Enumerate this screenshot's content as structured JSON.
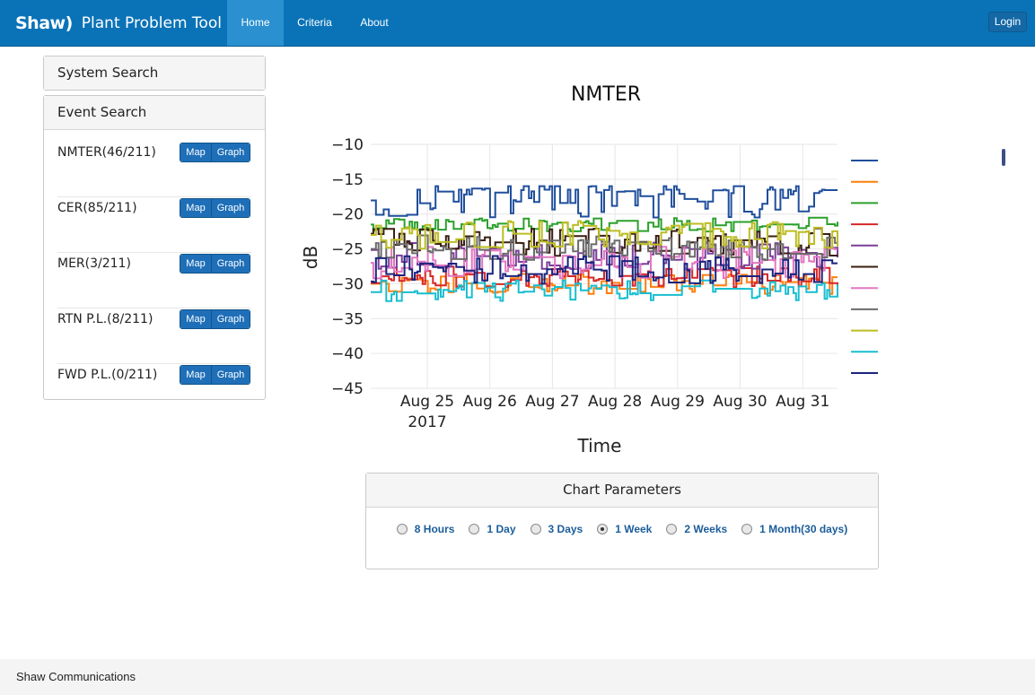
{
  "navbar": {
    "brand_logo": "Shaw)",
    "brand_title": "Plant Problem Tool",
    "items": [
      {
        "label": "Home"
      },
      {
        "label": "Criteria"
      },
      {
        "label": "About"
      }
    ],
    "login_label": "Login",
    "colors": {
      "background": "#0a73b7",
      "active": "#2a90cf"
    }
  },
  "sidebar": {
    "system_search": "System Search",
    "event_search": {
      "title": "Event Search",
      "rows": [
        {
          "label": "NMTER(46/211)",
          "map": "Map",
          "graph": "Graph"
        },
        {
          "label": "CER(85/211)",
          "map": "Map",
          "graph": "Graph"
        },
        {
          "label": "MER(3/211)",
          "map": "Map",
          "graph": "Graph"
        },
        {
          "label": "RTN P.L.(8/211)",
          "map": "Map",
          "graph": "Graph"
        },
        {
          "label": "FWD P.L.(0/211)",
          "map": "Map",
          "graph": "Graph"
        }
      ]
    }
  },
  "chart_data": {
    "type": "line",
    "title": "NMTER",
    "xlabel": "Time",
    "ylabel": "dB",
    "x_ticks": [
      "Aug 25",
      "Aug 26",
      "Aug 27",
      "Aug 28",
      "Aug 29",
      "Aug 30",
      "Aug 31"
    ],
    "x_tick_year": "2017",
    "y_ticks": [
      "−10",
      "−15",
      "−20",
      "−25",
      "−30",
      "−35",
      "−40",
      "−45"
    ],
    "ylim": [
      -45,
      -10
    ],
    "x_range": [
      "2017-08-24T08:00",
      "2017-08-31T16:00"
    ],
    "grid": true,
    "legend": "right",
    "series": [
      {
        "color": "#1f4e9c",
        "base": -18,
        "spread": 2.5
      },
      {
        "color": "#ff7f0e",
        "base": -30,
        "spread": 1.5
      },
      {
        "color": "#2ca02c",
        "base": -21.5,
        "spread": 1
      },
      {
        "color": "#d62728",
        "base": -29,
        "spread": 1.5
      },
      {
        "color": "#7b3f99",
        "base": -26,
        "spread": 2
      },
      {
        "color": "#3b1f12",
        "base": -24,
        "spread": 2
      },
      {
        "color": "#e377c2",
        "base": -27,
        "spread": 2.5
      },
      {
        "color": "#6b6b6b",
        "base": -25,
        "spread": 2
      },
      {
        "color": "#bcbd22",
        "base": -23,
        "spread": 2
      },
      {
        "color": "#17becf",
        "base": -31,
        "spread": 1.5
      },
      {
        "color": "#1a237e",
        "base": -28,
        "spread": 2
      }
    ]
  },
  "chart_params": {
    "title": "Chart Parameters",
    "options": [
      {
        "label": "8 Hours",
        "checked": false
      },
      {
        "label": "1 Day",
        "checked": false
      },
      {
        "label": "3 Days",
        "checked": false
      },
      {
        "label": "1 Week",
        "checked": true
      },
      {
        "label": "2 Weeks",
        "checked": false
      },
      {
        "label": "1 Month(30 days)",
        "checked": false
      }
    ]
  },
  "footer": {
    "text": "Shaw Communications"
  }
}
